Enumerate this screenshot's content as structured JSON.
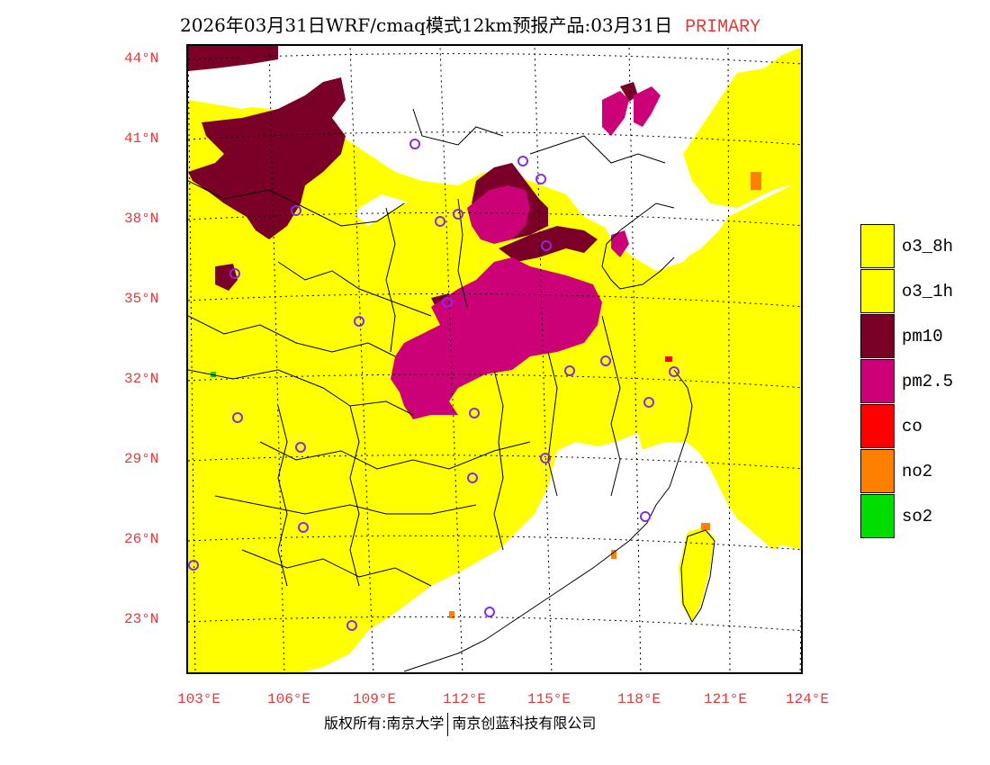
{
  "title": {
    "main": "2026年03月31日WRF/cmaq模式12km预报产品:03月31日",
    "tag": "PRIMARY"
  },
  "lat_labels": [
    "44°N",
    "41°N",
    "38°N",
    "35°N",
    "32°N",
    "29°N",
    "26°N",
    "23°N"
  ],
  "lon_labels": [
    "103°E",
    "106°E",
    "109°E",
    "112°E",
    "115°E",
    "118°E",
    "121°E",
    "124°E"
  ],
  "legend": [
    {
      "label": "o3_8h",
      "color": "#ffff00"
    },
    {
      "label": "o3_1h",
      "color": "#ffff00"
    },
    {
      "label": "pm10",
      "color": "#7a0028"
    },
    {
      "label": "pm2.5",
      "color": "#cc0077"
    },
    {
      "label": "co",
      "color": "#ff0000"
    },
    {
      "label": "no2",
      "color": "#ff7f00"
    },
    {
      "label": "so2",
      "color": "#00dd00"
    }
  ],
  "copyright": {
    "left": "版权所有:南京大学",
    "right": "南京创蓝科技有限公司"
  }
}
